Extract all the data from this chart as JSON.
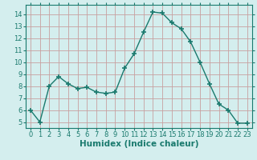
{
  "x": [
    0,
    1,
    2,
    3,
    4,
    5,
    6,
    7,
    8,
    9,
    10,
    11,
    12,
    13,
    14,
    15,
    16,
    17,
    18,
    19,
    20,
    21,
    22,
    23
  ],
  "y": [
    6,
    5,
    8,
    8.8,
    8.2,
    7.8,
    7.9,
    7.5,
    7.4,
    7.5,
    9.5,
    10.7,
    12.5,
    14.2,
    14.1,
    13.3,
    12.8,
    11.7,
    10.0,
    8.2,
    6.5,
    6.0,
    4.9,
    4.9
  ],
  "line_color": "#1a7a6e",
  "marker": "+",
  "marker_size": 4,
  "bg_color": "#d4eeee",
  "grid_color_major": "#c8a0a0",
  "xlabel": "Humidex (Indice chaleur)",
  "ylim": [
    4.5,
    14.8
  ],
  "xlim": [
    -0.5,
    23.5
  ],
  "yticks": [
    5,
    6,
    7,
    8,
    9,
    10,
    11,
    12,
    13,
    14
  ],
  "xticks": [
    0,
    1,
    2,
    3,
    4,
    5,
    6,
    7,
    8,
    9,
    10,
    11,
    12,
    13,
    14,
    15,
    16,
    17,
    18,
    19,
    20,
    21,
    22,
    23
  ],
  "tick_color": "#1a7a6e",
  "tick_label_fontsize": 6,
  "axis_label_fontsize": 7.5,
  "linewidth": 1.0,
  "markeredgewidth": 1.2
}
